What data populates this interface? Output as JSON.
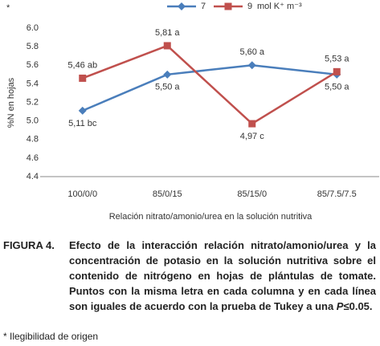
{
  "chart_data": {
    "type": "line",
    "note_mark": "*",
    "y_label": "%N  en  hojas",
    "x_label": "Relación nitrato/amonio/urea en la solución nutritiva",
    "legend_title": "mol K⁺ m⁻³",
    "categories": [
      "100/0/0",
      "85/0/15",
      "85/15/0",
      "85/7.5/7.5"
    ],
    "series": [
      {
        "name": "7",
        "color": "#4a7ebb",
        "marker": "diamond",
        "values": [
          5.11,
          5.5,
          5.6,
          5.5
        ],
        "value_labels": [
          "5,11 bc",
          "5,50 a",
          "5,60 a",
          "5,50 a"
        ]
      },
      {
        "name": "9",
        "color": "#c0504d",
        "marker": "square",
        "values": [
          5.46,
          5.81,
          4.97,
          5.53
        ],
        "value_labels": [
          "5,46 ab",
          "5,81 a",
          "4,97 c",
          "5,53 a"
        ]
      }
    ],
    "ylim": [
      4.4,
      6.0
    ],
    "yticks": [
      4.4,
      4.6,
      4.8,
      {
        "value": 5,
        "label": "5.0"
      },
      5.2,
      5.4,
      5.6,
      5.8,
      {
        "value": 6,
        "label": "6.0"
      }
    ],
    "grid": false
  },
  "caption": {
    "label": "FIGURA 4.",
    "text": "Efecto de la interacción relación nitrato/amonio/urea y la concentración de potasio en la solución nutritiva sobre el contenido de nitrógeno en hojas de plántulas de tomate. Puntos con la misma letra en cada columna y en cada línea son iguales de acuerdo con la prueba de Tukey a una ",
    "italic": "P",
    "end": "≤0.05."
  },
  "footnote": "* Ilegibilidad de origen"
}
